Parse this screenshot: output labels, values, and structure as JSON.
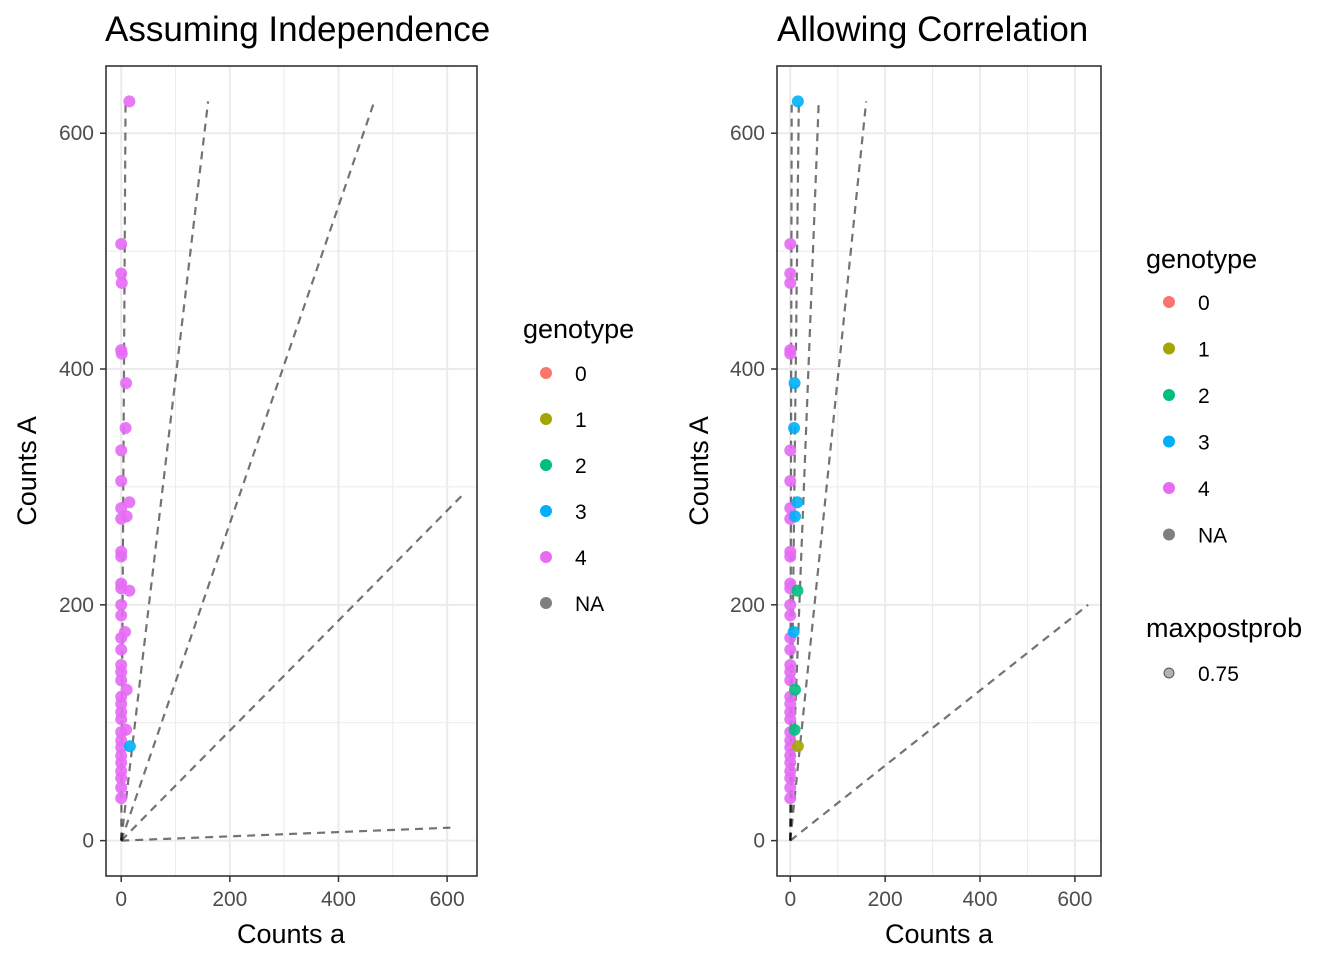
{
  "chart_data": [
    {
      "type": "scatter",
      "title": "Assuming Independence",
      "xlabel": "Counts a",
      "ylabel": "Counts A",
      "xlim": [
        -28,
        655
      ],
      "ylim": [
        -30,
        657
      ],
      "xticks": [
        0,
        200,
        400,
        600
      ],
      "yticks": [
        0,
        200,
        400,
        600
      ],
      "grid": true,
      "reference_lines": [
        {
          "x": [
            0,
            8
          ],
          "y": [
            0,
            627
          ]
        },
        {
          "x": [
            0,
            160
          ],
          "y": [
            0,
            627
          ]
        },
        {
          "x": [
            0,
            466
          ],
          "y": [
            0,
            627
          ]
        },
        {
          "x": [
            0,
            628
          ],
          "y": [
            0,
            293
          ]
        },
        {
          "x": [
            0,
            606
          ],
          "y": [
            0,
            11
          ]
        }
      ],
      "series": [
        {
          "name": "4",
          "color": "#e56af5",
          "points": [
            [
              15,
              627
            ],
            [
              0,
              506
            ],
            [
              0,
              481
            ],
            [
              1,
              473
            ],
            [
              0,
              416
            ],
            [
              1,
              413
            ],
            [
              9,
              388
            ],
            [
              8,
              350
            ],
            [
              0,
              331
            ],
            [
              0,
              305
            ],
            [
              15,
              287
            ],
            [
              0,
              282
            ],
            [
              10,
              275
            ],
            [
              0,
              273
            ],
            [
              0,
              245
            ],
            [
              0,
              241
            ],
            [
              0,
              218
            ],
            [
              0,
              214
            ],
            [
              15,
              212
            ],
            [
              0,
              200
            ],
            [
              0,
              191
            ],
            [
              7,
              177
            ],
            [
              0,
              172
            ],
            [
              0,
              162
            ],
            [
              0,
              149
            ],
            [
              0,
              143
            ],
            [
              0,
              136
            ],
            [
              10,
              128
            ],
            [
              0,
              122
            ],
            [
              0,
              116
            ],
            [
              0,
              109
            ],
            [
              0,
              103
            ],
            [
              9,
              94
            ],
            [
              0,
              92
            ],
            [
              0,
              85
            ],
            [
              0,
              79
            ],
            [
              0,
              72
            ],
            [
              0,
              66
            ],
            [
              0,
              59
            ],
            [
              0,
              53
            ],
            [
              0,
              45
            ],
            [
              0,
              36
            ]
          ]
        },
        {
          "name": "3",
          "color": "#00b0f6",
          "points": [
            [
              16,
              80
            ]
          ]
        }
      ]
    },
    {
      "type": "scatter",
      "title": "Allowing Correlation",
      "xlabel": "Counts a",
      "ylabel": "Counts A",
      "xlim": [
        -28,
        655
      ],
      "ylim": [
        -30,
        657
      ],
      "xticks": [
        0,
        200,
        400,
        600
      ],
      "yticks": [
        0,
        200,
        400,
        600
      ],
      "grid": true,
      "reference_lines": [
        {
          "x": [
            0,
            3
          ],
          "y": [
            0,
            627
          ]
        },
        {
          "x": [
            0,
            18
          ],
          "y": [
            0,
            627
          ]
        },
        {
          "x": [
            0,
            60
          ],
          "y": [
            0,
            627
          ]
        },
        {
          "x": [
            0,
            160
          ],
          "y": [
            0,
            627
          ]
        },
        {
          "x": [
            0,
            628
          ],
          "y": [
            0,
            200
          ]
        }
      ],
      "series": [
        {
          "name": "4",
          "color": "#e56af5",
          "points": [
            [
              0,
              506
            ],
            [
              0,
              481
            ],
            [
              0,
              473
            ],
            [
              0,
              416
            ],
            [
              0,
              413
            ],
            [
              0,
              331
            ],
            [
              0,
              305
            ],
            [
              0,
              282
            ],
            [
              0,
              273
            ],
            [
              0,
              245
            ],
            [
              0,
              241
            ],
            [
              0,
              218
            ],
            [
              0,
              214
            ],
            [
              0,
              200
            ],
            [
              0,
              191
            ],
            [
              0,
              172
            ],
            [
              0,
              162
            ],
            [
              0,
              149
            ],
            [
              0,
              143
            ],
            [
              0,
              136
            ],
            [
              0,
              122
            ],
            [
              0,
              116
            ],
            [
              0,
              109
            ],
            [
              0,
              103
            ],
            [
              0,
              92
            ],
            [
              0,
              85
            ],
            [
              0,
              79
            ],
            [
              0,
              72
            ],
            [
              0,
              66
            ],
            [
              0,
              59
            ],
            [
              0,
              53
            ],
            [
              0,
              45
            ],
            [
              0,
              36
            ]
          ]
        },
        {
          "name": "3",
          "color": "#00b0f6",
          "points": [
            [
              16,
              627
            ],
            [
              9,
              388
            ],
            [
              8,
              350
            ],
            [
              10,
              275
            ],
            [
              7,
              177
            ],
            [
              15,
              287
            ]
          ]
        },
        {
          "name": "2",
          "color": "#00bf7d",
          "points": [
            [
              15,
              212
            ],
            [
              10,
              128
            ],
            [
              9,
              94
            ]
          ]
        },
        {
          "name": "1",
          "color": "#a3a500",
          "points": [
            [
              16,
              80
            ]
          ]
        }
      ]
    }
  ],
  "legends": {
    "left": {
      "title": "genotype",
      "items": [
        {
          "label": "0",
          "color": "#f8766d"
        },
        {
          "label": "1",
          "color": "#a3a500"
        },
        {
          "label": "2",
          "color": "#00bf7d"
        },
        {
          "label": "3",
          "color": "#00b0f6"
        },
        {
          "label": "4",
          "color": "#e76bf3"
        },
        {
          "label": "NA",
          "color": "#7f7f7f"
        }
      ]
    },
    "right": {
      "title": "genotype",
      "items": [
        {
          "label": "0",
          "color": "#f8766d"
        },
        {
          "label": "1",
          "color": "#a3a500"
        },
        {
          "label": "2",
          "color": "#00bf7d"
        },
        {
          "label": "3",
          "color": "#00b0f6"
        },
        {
          "label": "4",
          "color": "#e76bf3"
        },
        {
          "label": "NA",
          "color": "#7f7f7f"
        }
      ],
      "size_title": "maxpostprob",
      "size_items": [
        {
          "label": "0.75",
          "color": "#7f7f7f"
        }
      ]
    }
  }
}
